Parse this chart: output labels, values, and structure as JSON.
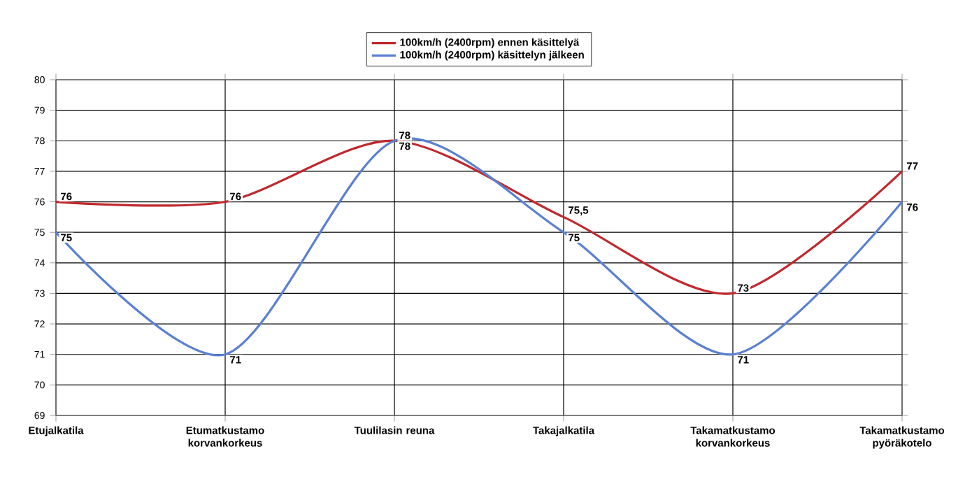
{
  "chart_data": {
    "type": "line",
    "categories": [
      "Etujalkatila",
      "Etumatkustamo korvankorkeus",
      "Tuulilasin reuna",
      "Takajalkatila",
      "Takamatkustamo korvankorkeus",
      "Takamatkustamo pyöräkotelo"
    ],
    "series": [
      {
        "name": "100km/h (2400rpm) ennen käsittelyä",
        "color": "#c0282d",
        "values": [
          76,
          76,
          78,
          75.5,
          73,
          77
        ],
        "value_labels": [
          "76",
          "76",
          "78",
          "75,5",
          "73",
          "77"
        ]
      },
      {
        "name": "100km/h (2400rpm) käsittelyn jälkeen",
        "color": "#5b80d0",
        "values": [
          75,
          71,
          78,
          75,
          71,
          76
        ],
        "value_labels": [
          "75",
          "71",
          "78",
          "75",
          "71",
          "76"
        ]
      }
    ],
    "ylim": [
      69,
      80
    ],
    "yticks": [
      69,
      70,
      71,
      72,
      73,
      74,
      75,
      76,
      77,
      78,
      79,
      80
    ],
    "grid": true,
    "legend": "top",
    "marker": "none",
    "line_style": "solid"
  }
}
